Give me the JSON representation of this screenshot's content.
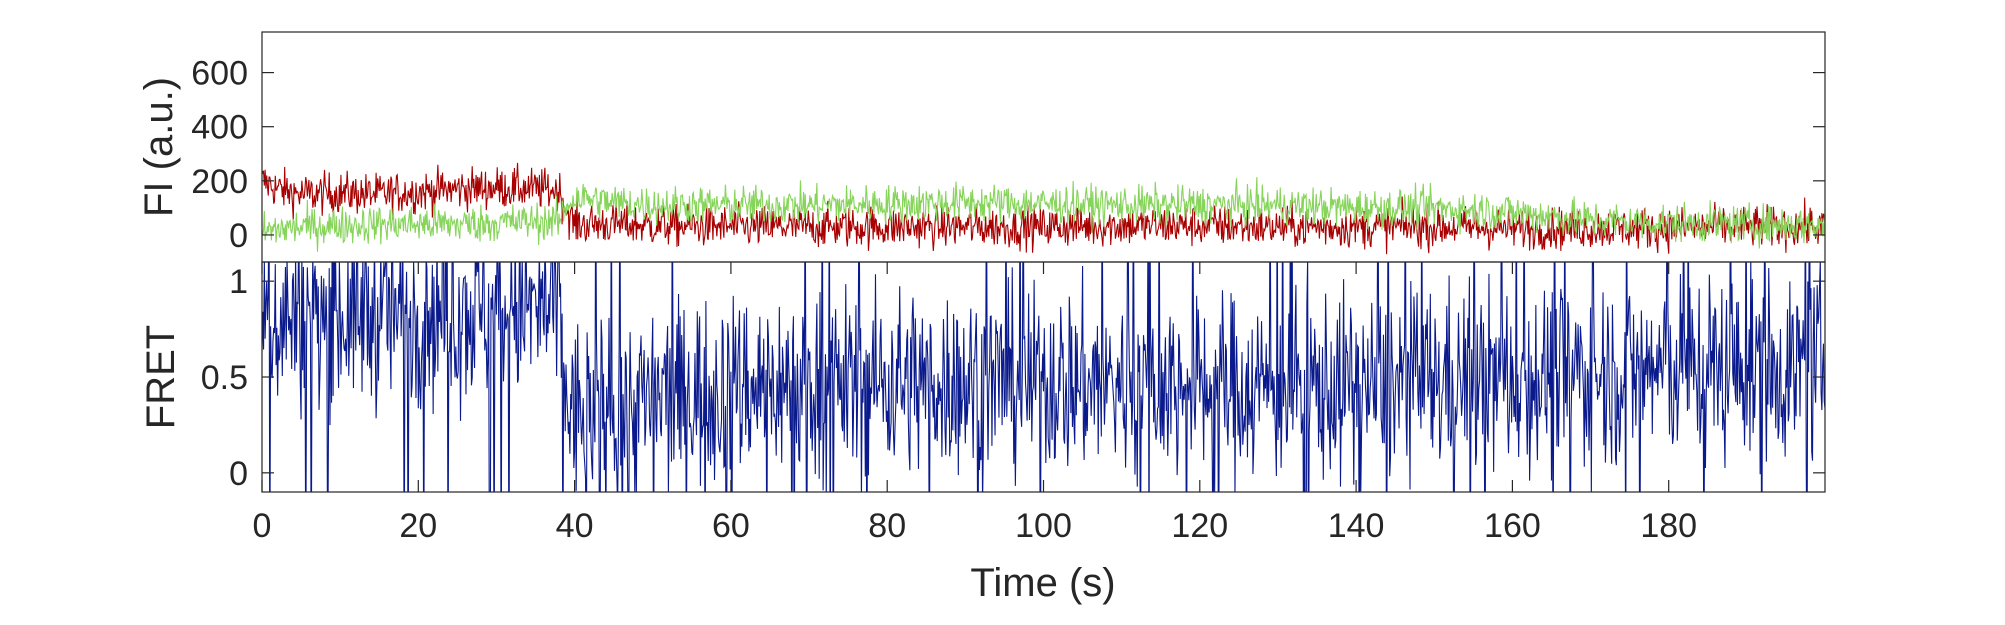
{
  "chart_data": [
    {
      "type": "line",
      "panel": "top",
      "ylabel": "FI (a.u.)",
      "xlabel": "",
      "xlim": [
        0,
        200
      ],
      "ylim": [
        -100,
        750
      ],
      "yticks": [
        0,
        200,
        400,
        600
      ],
      "ytick_labels": [
        "0",
        "200",
        "400",
        "600"
      ],
      "grid": false,
      "legend": "none",
      "series": [
        {
          "color": "#a80000",
          "x": [
            0,
            2,
            5,
            10,
            15,
            20,
            25,
            30,
            35,
            38,
            39,
            40,
            45,
            50,
            60,
            70,
            80,
            90,
            100,
            110,
            120,
            130,
            140,
            150,
            160,
            170,
            180,
            190,
            200
          ],
          "values": [
            200,
            170,
            150,
            155,
            150,
            160,
            170,
            175,
            170,
            165,
            90,
            40,
            40,
            35,
            30,
            30,
            30,
            30,
            30,
            35,
            35,
            30,
            30,
            30,
            25,
            25,
            25,
            30,
            30
          ],
          "noise": 55
        },
        {
          "color": "#86d45a",
          "x": [
            0,
            2,
            5,
            10,
            15,
            20,
            25,
            30,
            35,
            38,
            39,
            40,
            45,
            50,
            60,
            70,
            80,
            90,
            100,
            110,
            120,
            130,
            140,
            150,
            160,
            170,
            180,
            190,
            200
          ],
          "values": [
            10,
            20,
            30,
            35,
            40,
            40,
            40,
            45,
            50,
            50,
            110,
            140,
            120,
            110,
            110,
            110,
            115,
            120,
            115,
            110,
            110,
            110,
            100,
            100,
            85,
            55,
            45,
            40,
            35
          ],
          "noise": 50
        }
      ]
    },
    {
      "type": "line",
      "panel": "bottom",
      "ylabel": "FRET",
      "xlabel": "Time (s)",
      "xlim": [
        0,
        200
      ],
      "ylim": [
        -0.1,
        1.1
      ],
      "yticks": [
        0,
        0.5,
        1
      ],
      "ytick_labels": [
        "0",
        "0.5",
        "1"
      ],
      "xticks": [
        0,
        20,
        40,
        60,
        80,
        100,
        120,
        140,
        160,
        180
      ],
      "xtick_labels": [
        "0",
        "20",
        "40",
        "60",
        "80",
        "100",
        "120",
        "140",
        "160",
        "180"
      ],
      "grid": false,
      "legend": "none",
      "series": [
        {
          "color": "#0a1a8c",
          "x": [
            0,
            10,
            20,
            30,
            38,
            39,
            40,
            60,
            80,
            100,
            120,
            140,
            160,
            180,
            200
          ],
          "values": [
            0.8,
            0.82,
            0.84,
            0.85,
            0.85,
            0.35,
            0.3,
            0.45,
            0.48,
            0.48,
            0.45,
            0.45,
            0.5,
            0.55,
            0.55
          ],
          "noise": 0.35
        }
      ]
    }
  ]
}
